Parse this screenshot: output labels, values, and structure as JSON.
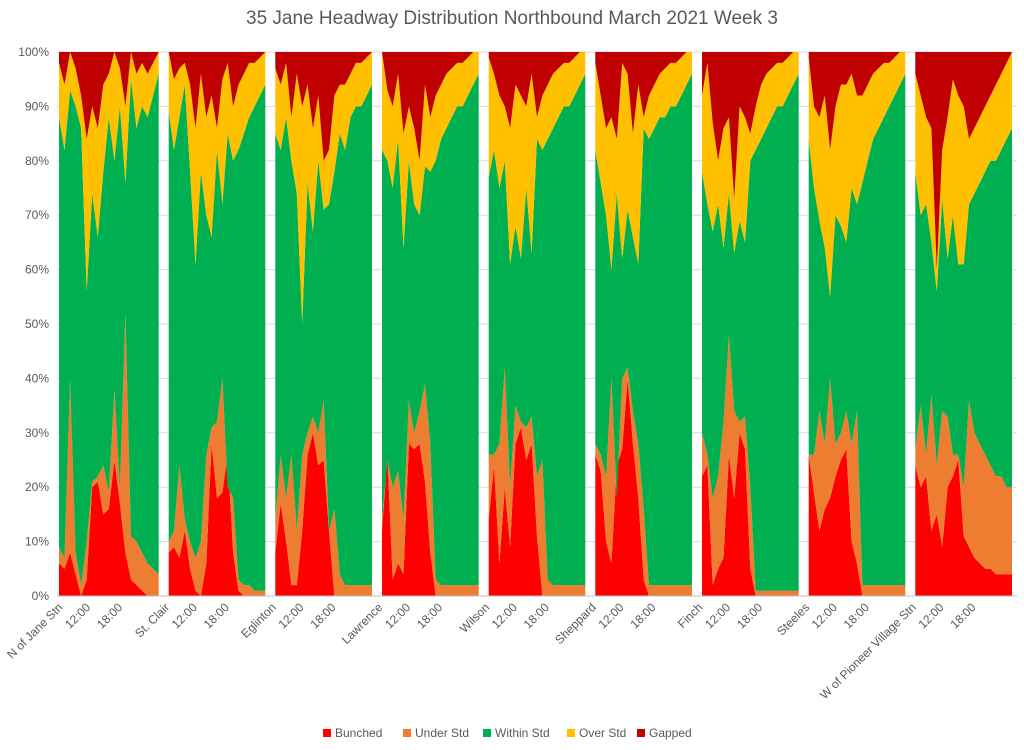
{
  "chart_data": {
    "type": "area",
    "stacking": "percent",
    "title": "35 Jane  Headway Distribution Northbound March 2021 Week 3",
    "ylim": [
      0,
      100
    ],
    "yticks": [
      "0%",
      "10%",
      "20%",
      "30%",
      "40%",
      "50%",
      "60%",
      "70%",
      "80%",
      "90%",
      "100%"
    ],
    "grid": true,
    "legend_position": "bottom",
    "x_label_rows": [
      {
        "label": "N of Jane Stn",
        "panel": 0
      },
      {
        "label": "12:00",
        "panel": 0
      },
      {
        "label": "18:00",
        "panel": 0
      },
      {
        "label": "St. Clair",
        "panel": 1
      },
      {
        "label": "12:00",
        "panel": 1
      },
      {
        "label": "18:00",
        "panel": 1
      },
      {
        "label": "Eglinton",
        "panel": 2
      },
      {
        "label": "12:00",
        "panel": 2
      },
      {
        "label": "18:00",
        "panel": 2
      },
      {
        "label": "Lawrence",
        "panel": 3
      },
      {
        "label": "12:00",
        "panel": 3
      },
      {
        "label": "18:00",
        "panel": 3
      },
      {
        "label": "Wilson",
        "panel": 4
      },
      {
        "label": "12:00",
        "panel": 4
      },
      {
        "label": "18:00",
        "panel": 4
      },
      {
        "label": "Sheppard",
        "panel": 5
      },
      {
        "label": "12:00",
        "panel": 5
      },
      {
        "label": "18:00",
        "panel": 5
      },
      {
        "label": "Finch",
        "panel": 6
      },
      {
        "label": "12:00",
        "panel": 6
      },
      {
        "label": "18:00",
        "panel": 6
      },
      {
        "label": "Steeles",
        "panel": 7
      },
      {
        "label": "12:00",
        "panel": 7
      },
      {
        "label": "18:00",
        "panel": 7
      },
      {
        "label": "W of Pioneer Village Stn",
        "panel": 8
      },
      {
        "label": "12:00",
        "panel": 8
      },
      {
        "label": "18:00",
        "panel": 8
      }
    ],
    "series_style": [
      {
        "name": "Bunched",
        "color": "#ff0000"
      },
      {
        "name": "Under Std",
        "color": "#ed7d31"
      },
      {
        "name": "Within Std",
        "color": "#00b050"
      },
      {
        "name": "Over Std",
        "color": "#ffc000"
      },
      {
        "name": "Gapped",
        "color": "#c00000"
      }
    ],
    "panels": [
      {
        "stop": "N of Jane Stn",
        "x": [
          6,
          7,
          8,
          9,
          10,
          11,
          12,
          13,
          14,
          15,
          16,
          17,
          18,
          19,
          20,
          21,
          22,
          23,
          24
        ],
        "cumulative": {
          "bunched": [
            6,
            5,
            8,
            4,
            0,
            3,
            20,
            21,
            15,
            16,
            25,
            17,
            8,
            3,
            2,
            1,
            0,
            0,
            0
          ],
          "under": [
            9,
            7,
            40,
            8,
            2,
            10,
            21,
            22,
            24,
            19,
            38,
            20,
            52,
            11,
            10,
            8,
            6,
            5,
            4
          ],
          "within": [
            88,
            82,
            93,
            90,
            86,
            56,
            74,
            66,
            78,
            88,
            80,
            90,
            76,
            95,
            86,
            90,
            88,
            92,
            96
          ],
          "over": [
            98,
            94,
            100,
            97,
            92,
            84,
            90,
            86,
            94,
            96,
            100,
            97,
            90,
            100,
            96,
            98,
            96,
            98,
            100
          ]
        }
      },
      {
        "stop": "St. Clair",
        "x": [
          6,
          7,
          8,
          9,
          10,
          11,
          12,
          13,
          14,
          15,
          16,
          17,
          18,
          19,
          20,
          21,
          22,
          23,
          24
        ],
        "cumulative": {
          "bunched": [
            8,
            9,
            7,
            12,
            5,
            1,
            0,
            6,
            28,
            18,
            19,
            26,
            8,
            1,
            0,
            0,
            0,
            0,
            0
          ],
          "under": [
            10,
            12,
            24,
            14,
            10,
            7,
            10,
            26,
            31,
            32,
            40,
            20,
            18,
            3,
            2,
            2,
            1,
            1,
            1
          ],
          "within": [
            89,
            82,
            88,
            94,
            78,
            61,
            78,
            70,
            66,
            82,
            72,
            85,
            80,
            82,
            85,
            88,
            90,
            92,
            94
          ],
          "over": [
            100,
            95,
            97,
            98,
            94,
            86,
            96,
            88,
            92,
            86,
            95,
            98,
            90,
            94,
            96,
            98,
            98,
            99,
            100
          ]
        }
      },
      {
        "stop": "Eglinton",
        "x": [
          6,
          7,
          8,
          9,
          10,
          11,
          12,
          13,
          14,
          15,
          16,
          17,
          18,
          19,
          20,
          21,
          22,
          23,
          24
        ],
        "cumulative": {
          "bunched": [
            8,
            17,
            10,
            2,
            2,
            12,
            26,
            30,
            24,
            25,
            12,
            0,
            0,
            0,
            0,
            0,
            0,
            0,
            0
          ],
          "under": [
            14,
            26,
            18,
            26,
            12,
            26,
            30,
            33,
            30,
            36,
            12,
            16,
            4,
            2,
            2,
            2,
            2,
            2,
            2
          ],
          "within": [
            85,
            82,
            88,
            80,
            74,
            50,
            76,
            67,
            80,
            71,
            72,
            78,
            85,
            82,
            88,
            90,
            90,
            92,
            94
          ],
          "over": [
            97,
            94,
            98,
            88,
            96,
            90,
            94,
            86,
            92,
            80,
            82,
            92,
            94,
            94,
            96,
            98,
            98,
            99,
            100
          ]
        }
      },
      {
        "stop": "Lawrence",
        "x": [
          6,
          7,
          8,
          9,
          10,
          11,
          12,
          13,
          14,
          15,
          16,
          17,
          18,
          19,
          20,
          21,
          22,
          23,
          24
        ],
        "cumulative": {
          "bunched": [
            12,
            26,
            3,
            6,
            4,
            28,
            27,
            28,
            21,
            8,
            0,
            0,
            0,
            0,
            0,
            0,
            0,
            0,
            0
          ],
          "under": [
            14,
            25,
            20,
            23,
            14,
            36,
            30,
            34,
            39,
            28,
            3,
            2,
            2,
            2,
            2,
            2,
            2,
            2,
            2
          ],
          "within": [
            82,
            80,
            75,
            84,
            64,
            80,
            72,
            70,
            79,
            78,
            80,
            84,
            86,
            88,
            90,
            90,
            92,
            94,
            96
          ],
          "over": [
            100,
            93,
            90,
            96,
            85,
            90,
            86,
            80,
            94,
            88,
            92,
            94,
            96,
            97,
            98,
            98,
            99,
            100,
            100
          ]
        }
      },
      {
        "stop": "Wilson",
        "x": [
          6,
          7,
          8,
          9,
          10,
          11,
          12,
          13,
          14,
          15,
          16,
          17,
          18,
          19,
          20,
          21,
          22,
          23,
          24
        ],
        "cumulative": {
          "bunched": [
            14,
            24,
            6,
            20,
            9,
            28,
            31,
            25,
            28,
            11,
            0,
            0,
            0,
            0,
            0,
            0,
            0,
            0,
            0
          ],
          "under": [
            26,
            26,
            28,
            42,
            20,
            35,
            32,
            31,
            33,
            22,
            25,
            3,
            2,
            2,
            2,
            2,
            2,
            2,
            2
          ],
          "within": [
            77,
            82,
            75,
            80,
            61,
            68,
            62,
            75,
            63,
            84,
            82,
            84,
            86,
            88,
            90,
            90,
            92,
            94,
            96
          ],
          "over": [
            99,
            96,
            92,
            90,
            86,
            94,
            92,
            90,
            96,
            88,
            92,
            94,
            96,
            97,
            98,
            98,
            99,
            100,
            100
          ]
        }
      },
      {
        "stop": "Sheppard",
        "x": [
          6,
          7,
          8,
          9,
          10,
          11,
          12,
          13,
          14,
          15,
          16,
          17,
          18,
          19,
          20,
          21,
          22,
          23,
          24
        ],
        "cumulative": {
          "bunched": [
            26,
            23,
            10,
            6,
            24,
            27,
            40,
            28,
            18,
            3,
            0,
            0,
            0,
            0,
            0,
            0,
            0,
            0,
            0
          ],
          "under": [
            28,
            26,
            22,
            40,
            18,
            40,
            42,
            34,
            28,
            16,
            2,
            2,
            2,
            2,
            2,
            2,
            2,
            2,
            2
          ],
          "within": [
            82,
            76,
            70,
            60,
            74,
            62,
            71,
            66,
            61,
            86,
            84,
            86,
            88,
            88,
            90,
            90,
            92,
            94,
            96
          ],
          "over": [
            98,
            92,
            86,
            88,
            84,
            98,
            96,
            85,
            94,
            88,
            92,
            94,
            96,
            97,
            98,
            98,
            99,
            100,
            100
          ]
        }
      },
      {
        "stop": "Finch",
        "x": [
          6,
          7,
          8,
          9,
          10,
          11,
          12,
          13,
          14,
          15,
          16,
          17,
          18,
          19,
          20,
          21,
          22,
          23,
          24
        ],
        "cumulative": {
          "bunched": [
            22,
            24,
            2,
            5,
            7,
            26,
            18,
            30,
            27,
            5,
            0,
            0,
            0,
            0,
            0,
            0,
            0,
            0,
            0
          ],
          "under": [
            30,
            26,
            18,
            22,
            32,
            48,
            34,
            32,
            33,
            20,
            1,
            1,
            1,
            1,
            1,
            1,
            1,
            1,
            1
          ],
          "within": [
            78,
            72,
            67,
            72,
            64,
            74,
            63,
            69,
            65,
            80,
            82,
            84,
            86,
            88,
            90,
            90,
            92,
            94,
            96
          ],
          "over": [
            92,
            98,
            87,
            80,
            86,
            88,
            73,
            90,
            88,
            85,
            90,
            94,
            96,
            97,
            98,
            98,
            99,
            100,
            100
          ]
        }
      },
      {
        "stop": "Steeles",
        "x": [
          6,
          7,
          8,
          9,
          10,
          11,
          12,
          13,
          14,
          15,
          16,
          17,
          18,
          19,
          20,
          21,
          22,
          23,
          24
        ],
        "cumulative": {
          "bunched": [
            26,
            19,
            12,
            16,
            18,
            22,
            25,
            27,
            10,
            6,
            0,
            0,
            0,
            0,
            0,
            0,
            0,
            0,
            0
          ],
          "under": [
            26,
            26,
            34,
            28,
            40,
            28,
            30,
            34,
            28,
            34,
            2,
            2,
            2,
            2,
            2,
            2,
            2,
            2,
            2
          ],
          "within": [
            84,
            75,
            69,
            64,
            55,
            70,
            68,
            65,
            75,
            72,
            76,
            80,
            84,
            86,
            88,
            90,
            92,
            94,
            96
          ],
          "over": [
            99,
            90,
            88,
            92,
            82,
            90,
            94,
            94,
            96,
            92,
            92,
            94,
            96,
            97,
            98,
            98,
            99,
            100,
            100
          ]
        }
      },
      {
        "stop": "W of Pioneer Village Stn",
        "x": [
          6,
          7,
          8,
          9,
          10,
          11,
          12,
          13,
          14,
          15,
          16,
          17,
          18,
          19,
          20,
          21,
          22,
          23,
          24
        ],
        "cumulative": {
          "bunched": [
            24,
            20,
            22,
            12,
            15,
            9,
            20,
            22,
            25,
            11,
            9,
            7,
            6,
            5,
            5,
            4,
            4,
            4,
            4
          ],
          "under": [
            27,
            35,
            26,
            37,
            24,
            34,
            33,
            26,
            26,
            20,
            36,
            30,
            28,
            26,
            24,
            22,
            22,
            20,
            20
          ],
          "within": [
            78,
            70,
            72,
            65,
            56,
            73,
            62,
            70,
            61,
            61,
            72,
            74,
            76,
            78,
            80,
            80,
            82,
            84,
            86
          ],
          "over": [
            96,
            92,
            88,
            86,
            60,
            82,
            88,
            95,
            92,
            90,
            84,
            86,
            88,
            90,
            92,
            94,
            96,
            98,
            100
          ]
        }
      }
    ]
  }
}
